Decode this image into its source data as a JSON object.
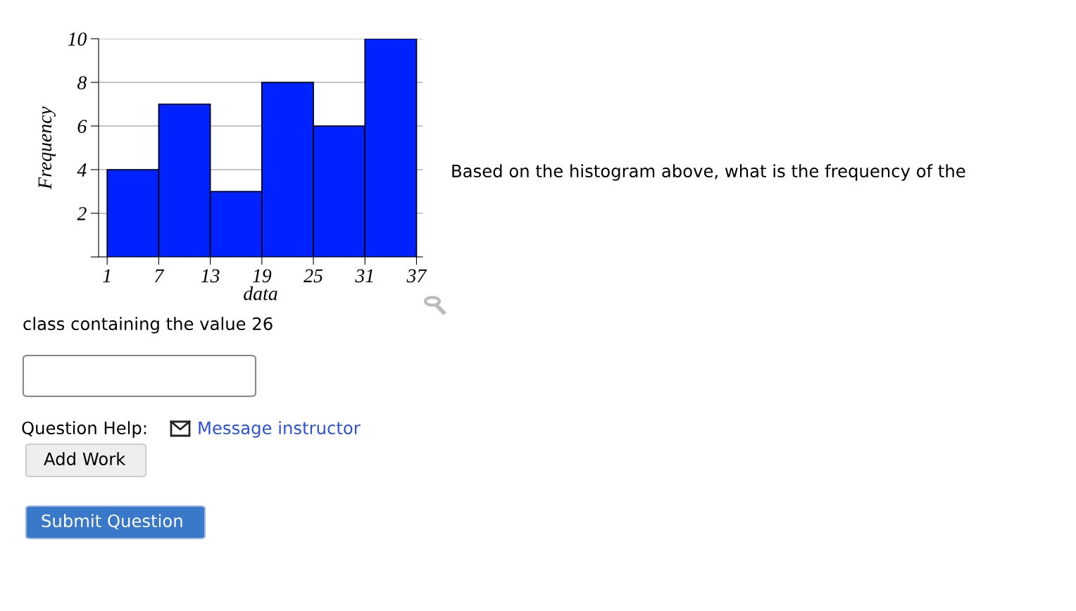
{
  "chart_data": {
    "type": "histogram",
    "xlabel": "data",
    "ylabel": "Frequency",
    "bins": [
      1,
      7,
      13,
      19,
      25,
      31,
      37
    ],
    "values": [
      4,
      7,
      3,
      8,
      6,
      10
    ],
    "color": "#0022ff",
    "xlim": [
      0,
      37.7
    ],
    "xticks": [
      1,
      7,
      13,
      19,
      25,
      31,
      37
    ],
    "ylim": [
      0,
      10
    ],
    "yticks": [
      {
        "value": 0,
        "label": null
      },
      2,
      4,
      6,
      8,
      10
    ],
    "grid": "y",
    "annotations": [
      "Based on the histogram above, what is the frequency of the",
      "class containing the value 26",
      "Question Help:",
      "Message instructor",
      "Add Work",
      "Submit Question"
    ]
  }
}
